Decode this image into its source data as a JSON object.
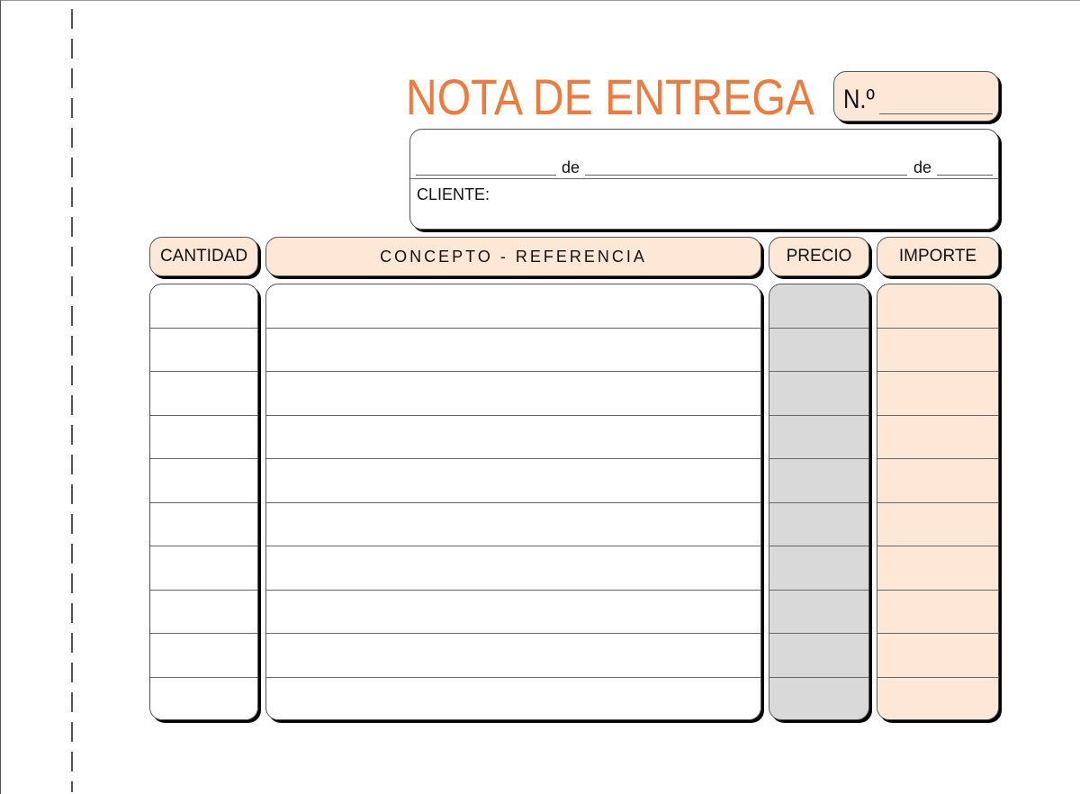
{
  "form": {
    "title": "NOTA DE ENTREGA",
    "number_label": "N.º",
    "date_connector_1": "de",
    "date_connector_2": "de",
    "client_label": "CLIENTE:",
    "columns": [
      "CANTIDAD",
      "CONCEPTO - REFERENCIA",
      "PRECIO",
      "IMPORTE"
    ],
    "row_count": 10,
    "colors": {
      "title": "#f07a3a",
      "peach": "#fde7d6",
      "gray": "#d9d9d9"
    }
  }
}
